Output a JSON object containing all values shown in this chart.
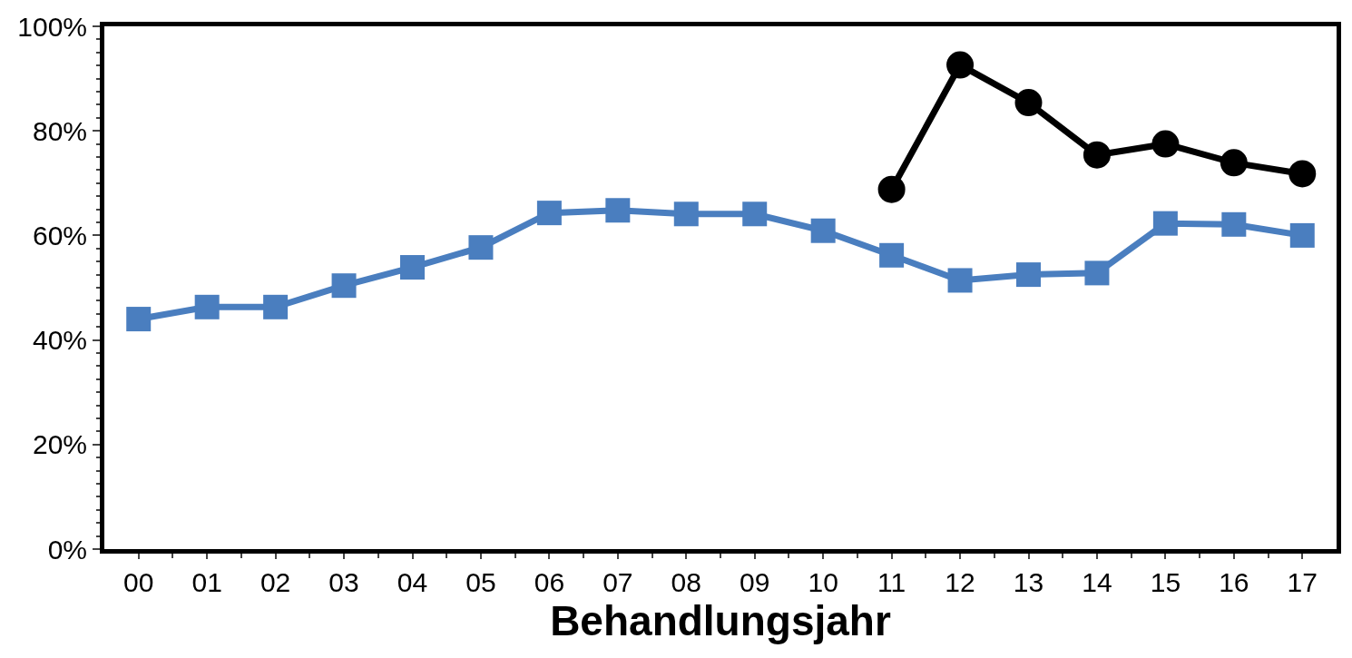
{
  "chart_data": {
    "type": "line",
    "xlabel": "Behandlungsjahr",
    "categories": [
      "00",
      "01",
      "02",
      "03",
      "04",
      "05",
      "06",
      "07",
      "08",
      "09",
      "10",
      "11",
      "12",
      "13",
      "14",
      "15",
      "16",
      "17"
    ],
    "series": [
      {
        "color": "#4a7ebf",
        "marker": "square",
        "values": [
          44.0,
          46.3,
          46.3,
          50.4,
          53.9,
          57.7,
          64.3,
          64.8,
          64.1,
          64.1,
          60.9,
          56.2,
          51.4,
          52.5,
          52.8,
          62.3,
          62.1,
          60.0
        ]
      },
      {
        "color": "#000000",
        "marker": "circle",
        "values": [
          null,
          null,
          null,
          null,
          null,
          null,
          null,
          null,
          null,
          null,
          null,
          68.8,
          92.6,
          85.4,
          75.4,
          77.5,
          73.9,
          71.8
        ]
      }
    ],
    "ylim": [
      0,
      100
    ],
    "yticks": [
      {
        "value": 0,
        "label": "0%"
      },
      {
        "value": 20,
        "label": "20%"
      },
      {
        "value": 40,
        "label": "40%"
      },
      {
        "value": 60,
        "label": "60%"
      },
      {
        "value": 80,
        "label": "80%"
      },
      {
        "value": 100,
        "label": "100%"
      }
    ],
    "line_style": "solid"
  }
}
